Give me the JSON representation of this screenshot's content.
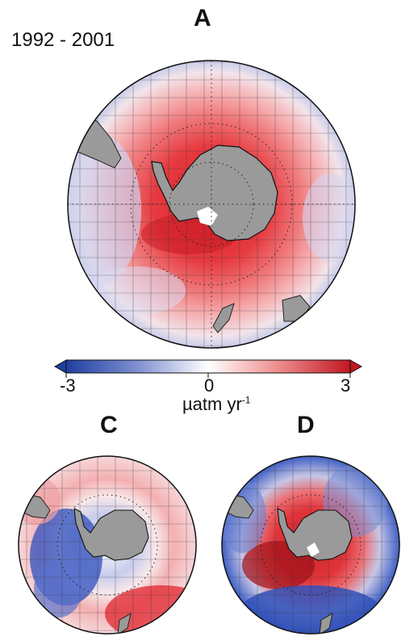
{
  "panels": {
    "a": {
      "letter": "A",
      "period": "1992 - 2001"
    },
    "c": {
      "letter": "C"
    },
    "d": {
      "letter": "D"
    }
  },
  "colorbar": {
    "min_label": "-3",
    "zero_label": "0",
    "max_label": "3",
    "units": "µatm yr",
    "units_exponent": "-1",
    "colors": {
      "low": "#1f3fa0",
      "mid": "#ffffff",
      "high": "#c01820"
    }
  },
  "colors": {
    "land": "#9a9a9a",
    "ocean_red": "#e8323a",
    "ocean_pink": "#f4a6a8",
    "ocean_blue": "#3a58c0"
  }
}
